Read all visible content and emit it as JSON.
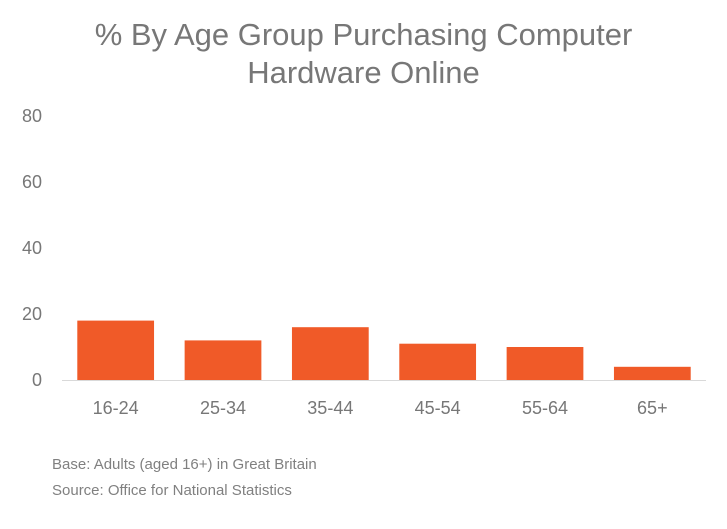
{
  "chart_data": {
    "type": "bar",
    "title_lines": [
      "% By Age Group Purchasing Computer",
      "Hardware Online"
    ],
    "categories": [
      "16-24",
      "25-34",
      "35-44",
      "45-54",
      "55-64",
      "65+"
    ],
    "values": [
      18,
      12,
      16,
      11,
      10,
      4
    ],
    "xlabel": "",
    "ylabel": "",
    "ylim": [
      0,
      80
    ],
    "yticks": [
      0,
      20,
      40,
      60,
      80
    ],
    "grid": false,
    "legend": "none",
    "bar_color": "#f05a28",
    "axis_color": "#d9d9d9",
    "text_color": "#777777"
  },
  "footnotes": {
    "base": "Base: Adults (aged 16+) in Great Britain",
    "source": "Source: Office for National Statistics"
  }
}
